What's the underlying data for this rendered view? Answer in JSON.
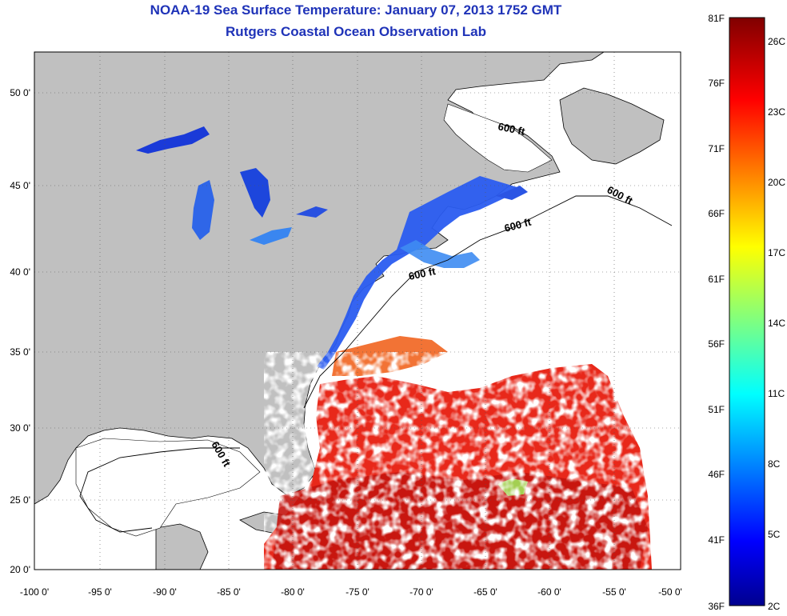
{
  "header": {
    "title": "NOAA-19 Sea Surface Temperature:  January 07, 2013 1752 GMT",
    "subtitle": "Rutgers Coastal Ocean Observation Lab"
  },
  "map": {
    "lon_range": [
      -100,
      -50
    ],
    "lat_range": [
      20,
      52.5
    ],
    "lon_ticks": [
      "-100 0'",
      "-95 0'",
      "-90 0'",
      "-85 0'",
      "-80 0'",
      "-75 0'",
      "-70 0'",
      "-65 0'",
      "-60 0'",
      "-55 0'",
      "-50 0'"
    ],
    "lat_ticks": [
      "20 0'",
      "25 0'",
      "30 0'",
      "35 0'",
      "40 0'",
      "45 0'",
      "50 0'"
    ],
    "contour_labels": [
      "600 ft",
      "600 ft",
      "600 ft",
      "600 ft",
      "600 ft"
    ],
    "land_color": "#c0c0c0",
    "ocean_no_data_color": "#ffffff",
    "grid": "dotted"
  },
  "colorbar": {
    "f_labels": [
      "81F",
      "76F",
      "71F",
      "66F",
      "61F",
      "56F",
      "51F",
      "46F",
      "41F",
      "36F"
    ],
    "c_labels": [
      "26C",
      "23C",
      "20C",
      "17C",
      "14C",
      "11C",
      "8C",
      "5C",
      "2C"
    ],
    "colormap": "jet",
    "low_color": "#00008f",
    "high_color": "#800000"
  }
}
